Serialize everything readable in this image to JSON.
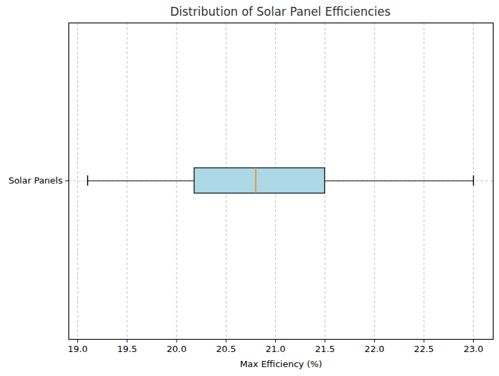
{
  "chart_data": {
    "type": "box",
    "title": "Distribution of Solar Panel Efficiencies",
    "orientation": "horizontal",
    "categories": [
      "Solar Panels"
    ],
    "stats": [
      {
        "whislo": 19.1,
        "q1": 20.18,
        "med": 20.8,
        "q3": 21.5,
        "whishi": 23.0
      }
    ],
    "color": "#add8e6",
    "median_color": "#ff7f0e",
    "xlabel": "Max Efficiency (%)",
    "xlim": [
      18.91,
      23.2
    ],
    "xticks": [
      {
        "value": 19,
        "label": "19.0"
      },
      19.5,
      {
        "value": 20,
        "label": "20.0"
      },
      20.5,
      {
        "value": 21,
        "label": "21.0"
      },
      21.5,
      {
        "value": 22,
        "label": "22.0"
      },
      22.5,
      {
        "value": 23,
        "label": "23.0"
      }
    ],
    "grid": true
  }
}
